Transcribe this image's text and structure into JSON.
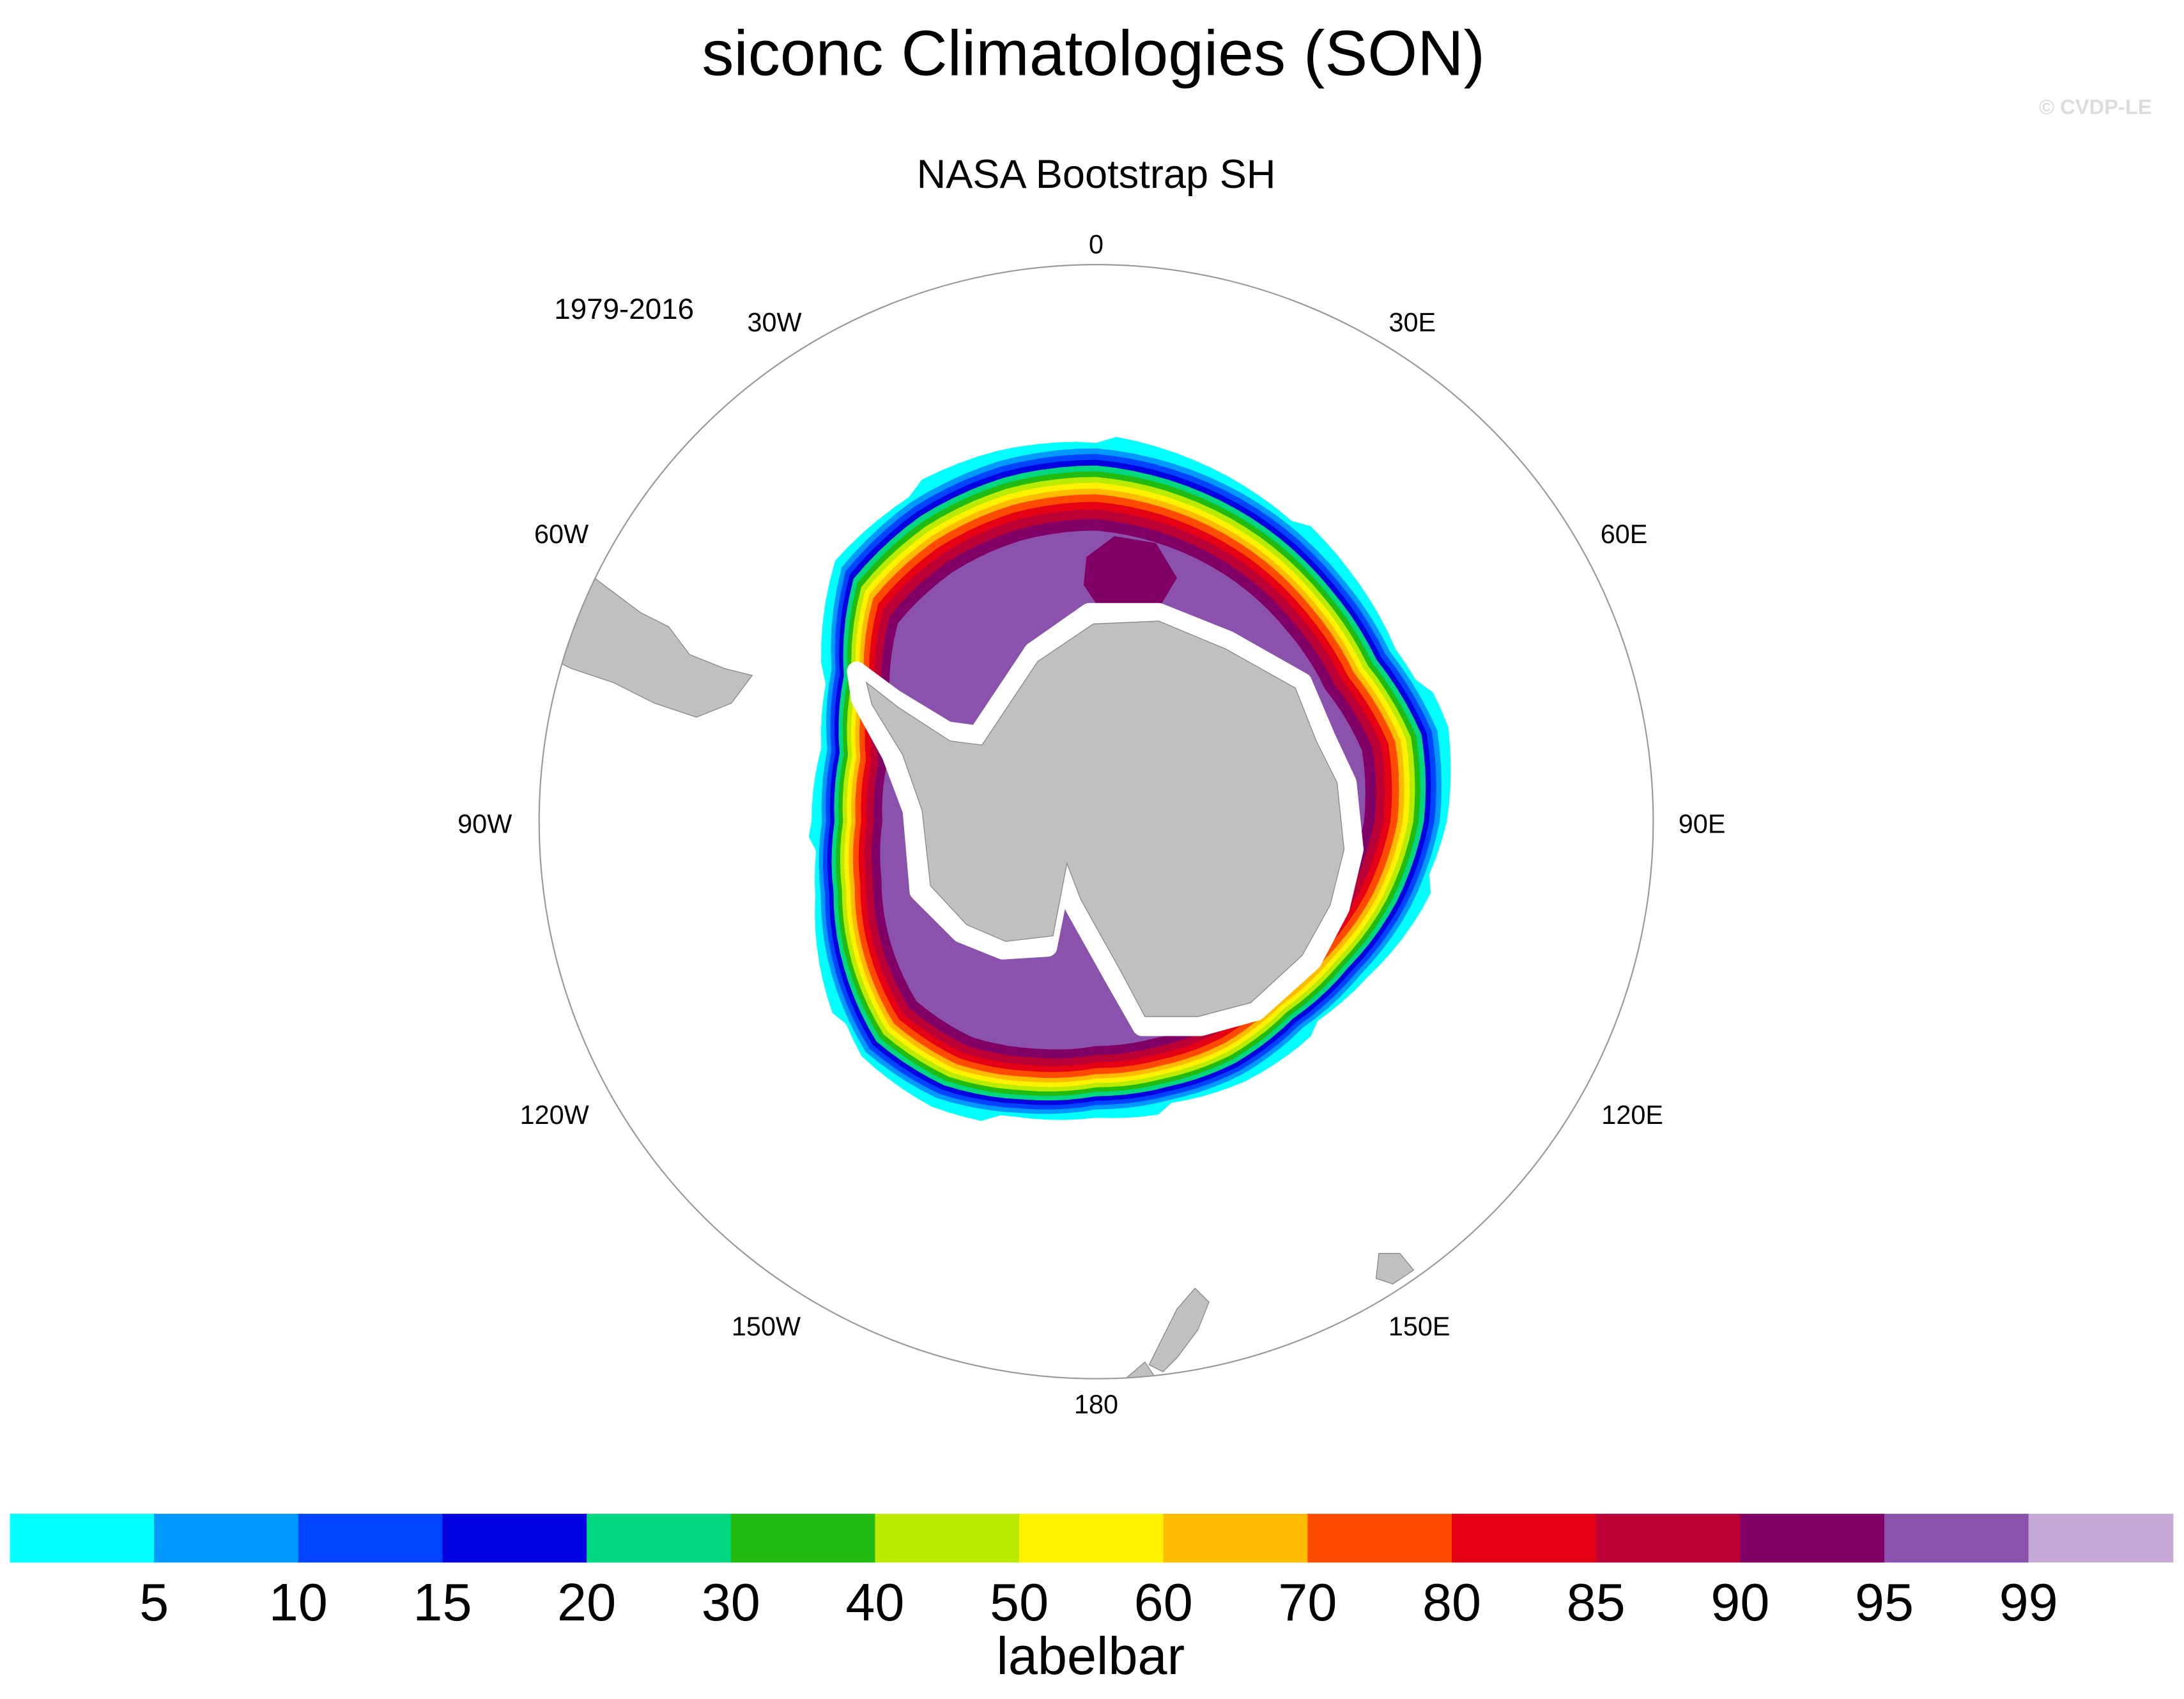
{
  "title": "siconc Climatologies (SON)",
  "watermark": "© CVDP-LE",
  "subtitle": "NASA Bootstrap SH",
  "period": "1979-2016",
  "longitude_labels": {
    "lon_0": "0",
    "lon_30e": "30E",
    "lon_60e": "60E",
    "lon_90e": "90E",
    "lon_120e": "120E",
    "lon_150e": "150E",
    "lon_180": "180",
    "lon_150w": "150W",
    "lon_120w": "120W",
    "lon_90w": "90W",
    "lon_60w": "60W",
    "lon_30w": "30W"
  },
  "projection": "south polar stereographic",
  "land_color": "#c0c0c0",
  "labelbar": {
    "title": "labelbar",
    "levels": [
      "5",
      "10",
      "15",
      "20",
      "30",
      "40",
      "50",
      "60",
      "70",
      "80",
      "85",
      "90",
      "95",
      "99"
    ],
    "colors": [
      "#00ffff",
      "#0099ff",
      "#0044ff",
      "#0000e0",
      "#00d77f",
      "#22bb11",
      "#bbeb00",
      "#fff200",
      "#ffbb00",
      "#ff4b00",
      "#e60016",
      "#bb0036",
      "#800066",
      "#8b52ad",
      "#c6a9d6"
    ]
  }
}
